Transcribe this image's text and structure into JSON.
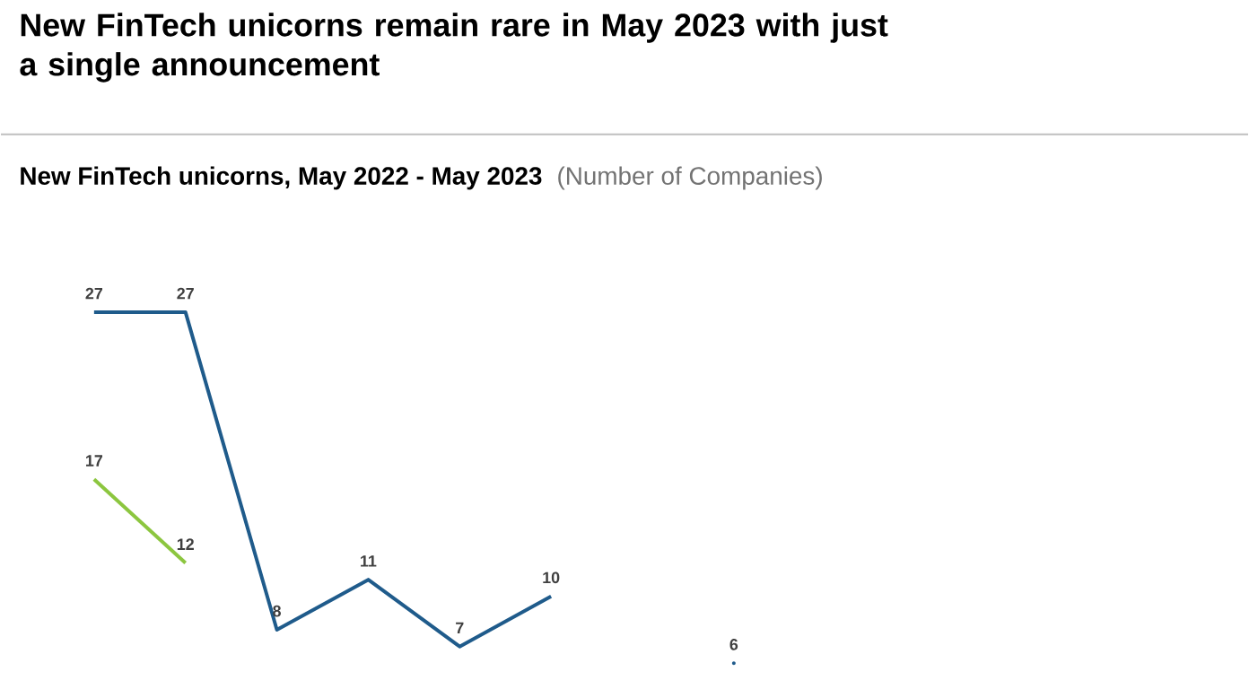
{
  "chart_data": {
    "type": "line",
    "title": "New FinTech unicorns remain rare in May 2023 with just a single announcement",
    "subtitle": "New FinTech unicorns,  May 2022 - May 2023",
    "ylabel": "(Number of Companies)",
    "categories": [
      null,
      null,
      null,
      null,
      null,
      null,
      null,
      null,
      null,
      null,
      null,
      null,
      null
    ],
    "series": [
      {
        "color": "#1f5b8b",
        "values": [
          27,
          27,
          8,
          11,
          7,
          10,
          null,
          6,
          null,
          null,
          null,
          null,
          null
        ]
      },
      {
        "color": "#8cc63f",
        "values": [
          17,
          12,
          null,
          null,
          null,
          null,
          null,
          null,
          null,
          null,
          null,
          null,
          null
        ]
      }
    ],
    "data_labels": true
  }
}
